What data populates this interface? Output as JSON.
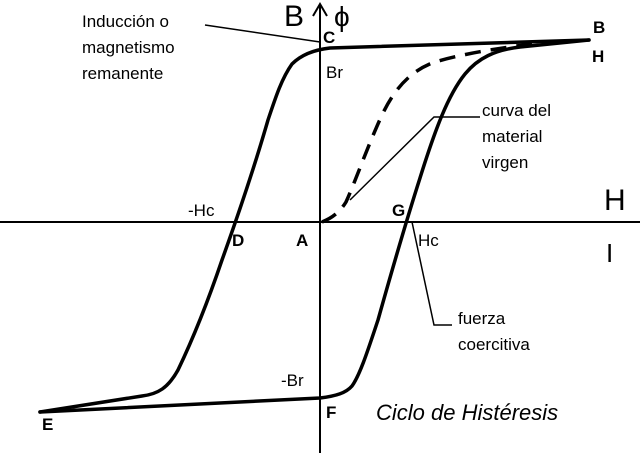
{
  "axes": {
    "vertical_label": "B",
    "vertical_symbol": "ϕ",
    "horizontal_label": "H",
    "horizontal_symbol": "I"
  },
  "points": {
    "A": "A",
    "B": "B",
    "C": "C",
    "D": "D",
    "E": "E",
    "F": "F",
    "G": "G",
    "H": "H"
  },
  "values": {
    "br": "Br",
    "neg_br": "-Br",
    "hc": "Hc",
    "neg_hc": "-Hc"
  },
  "annotations": {
    "remanence": [
      "Inducción o",
      "magnetismo",
      "remanente"
    ],
    "virgin_curve": [
      "curva del",
      "material",
      "virgen"
    ],
    "coercive_force": [
      "fuerza",
      "coercitiva"
    ]
  },
  "title": "Ciclo de Histéresis"
}
